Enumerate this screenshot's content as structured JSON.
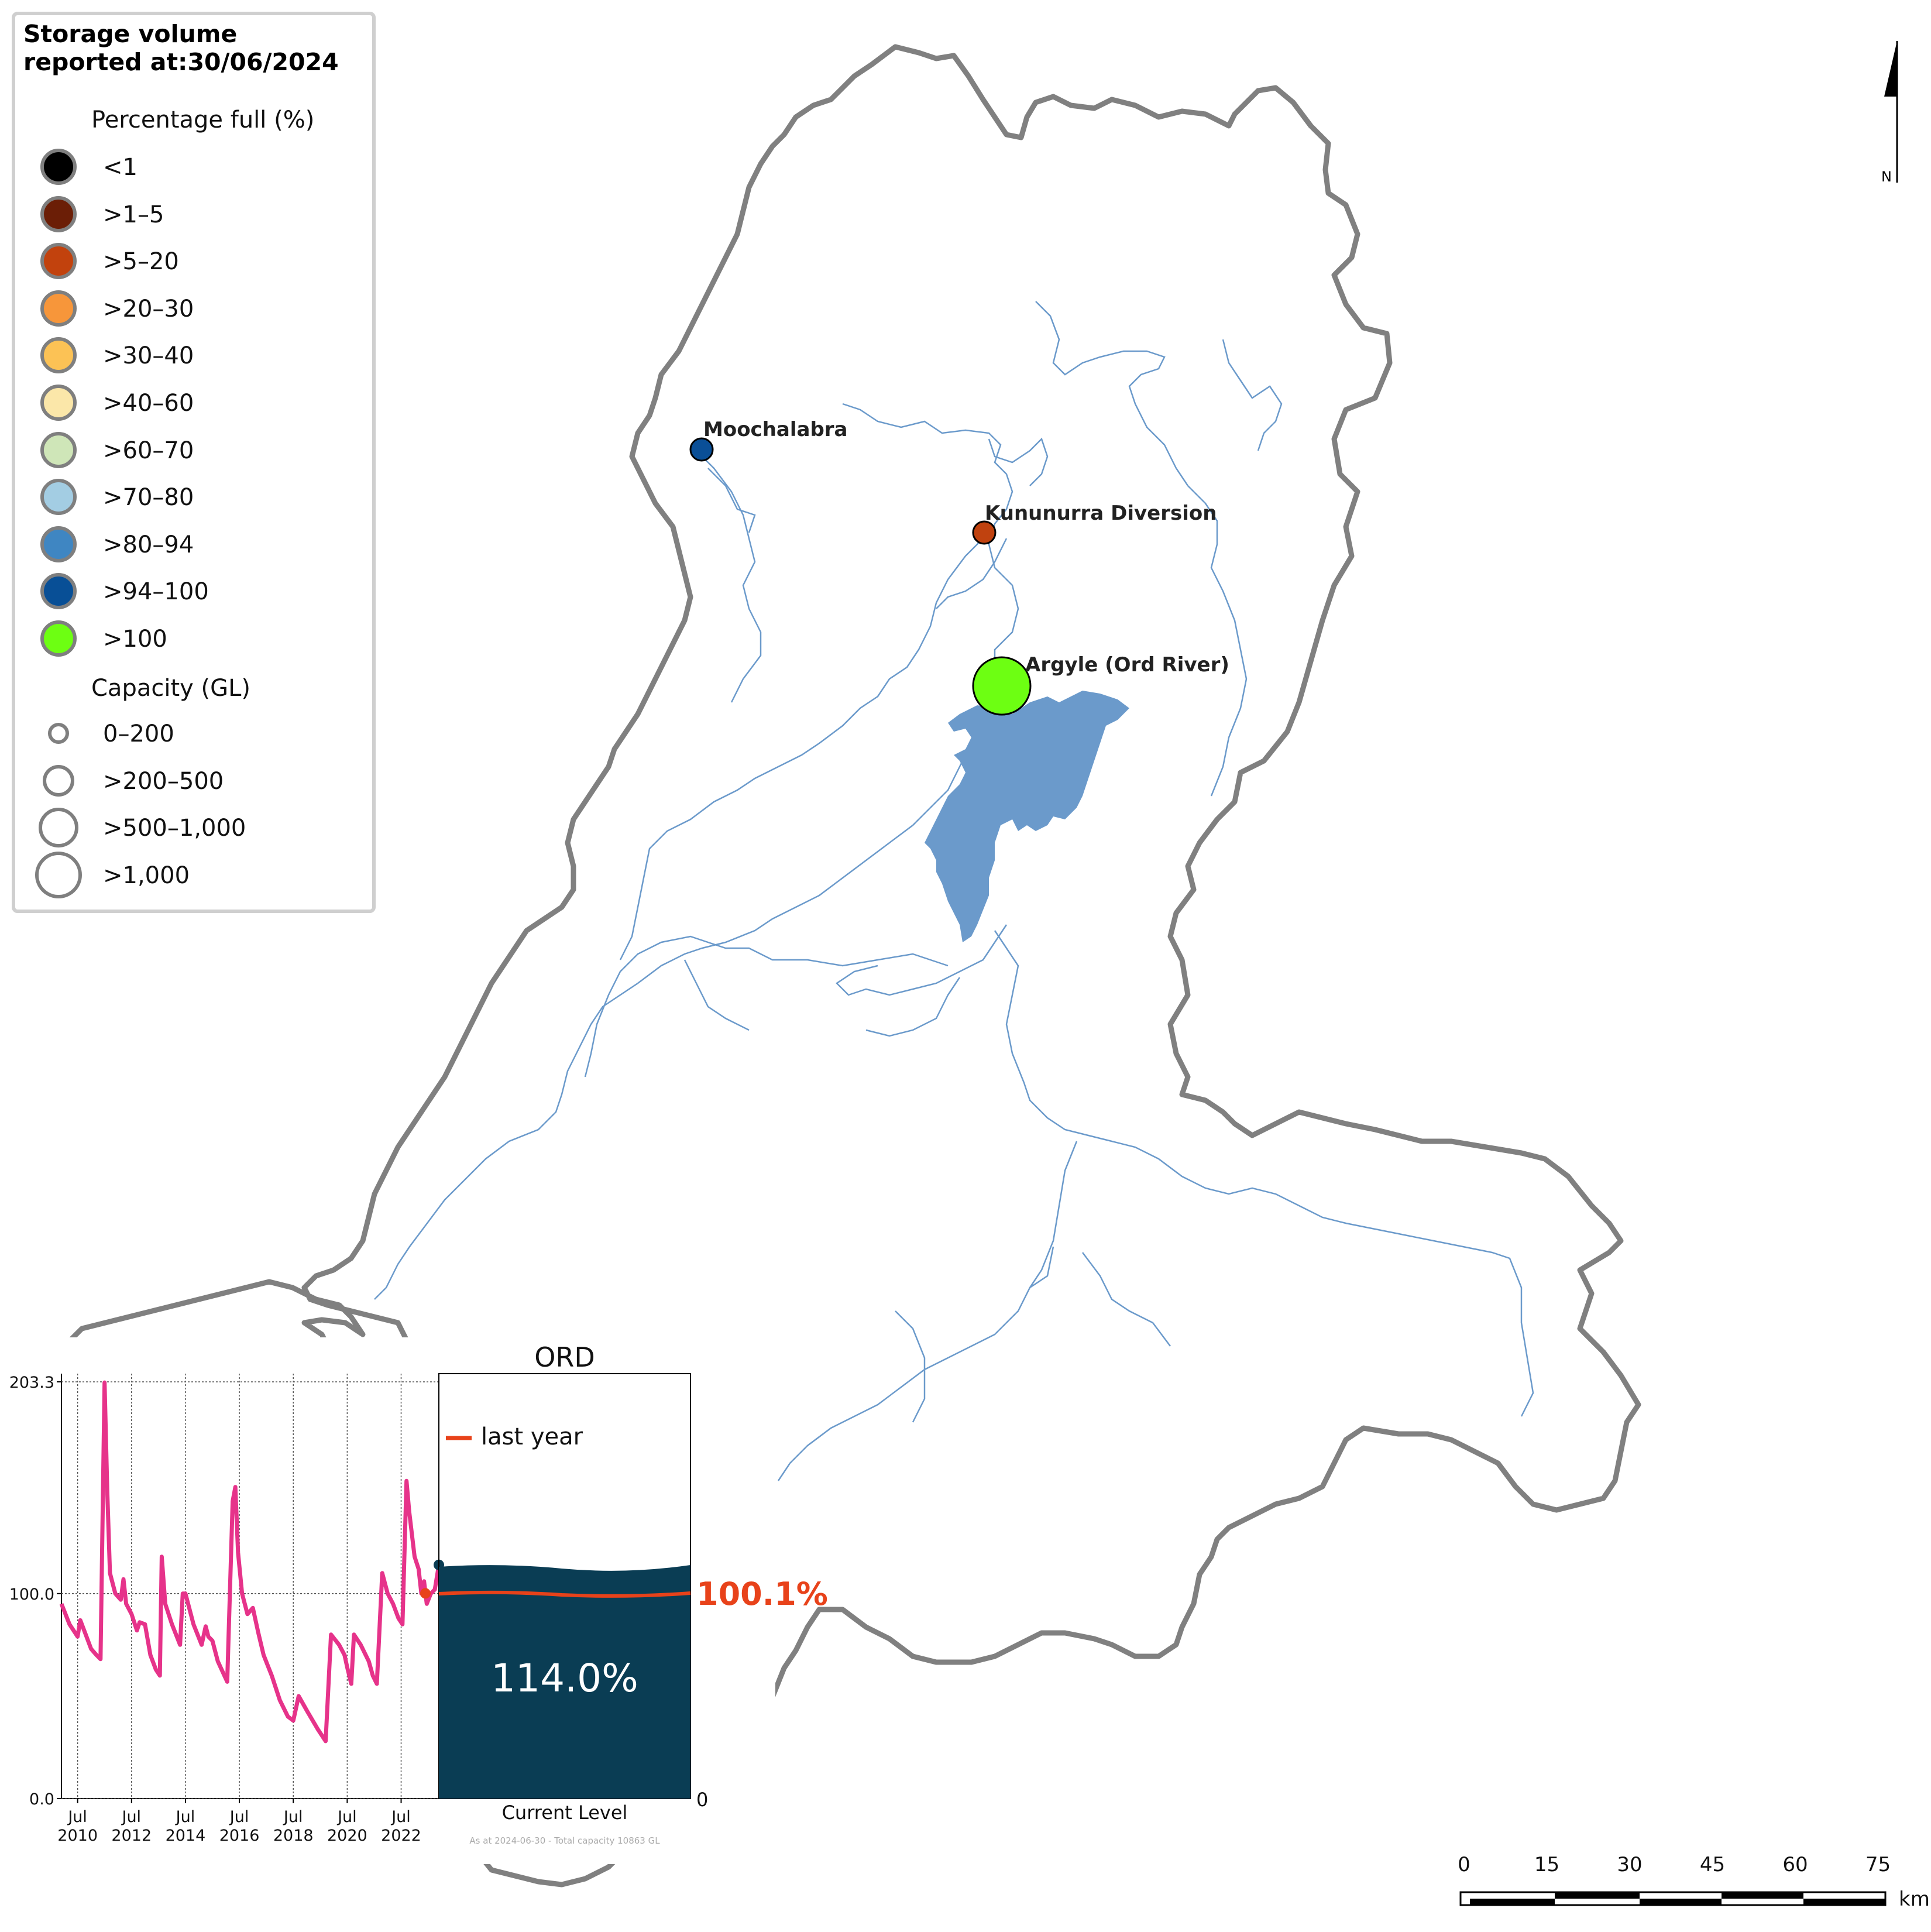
{
  "legend": {
    "title": "Storage volume\nreported at:30/06/2024",
    "percentage_heading": "Percentage full (%)",
    "percentage_items": [
      {
        "label": "<1",
        "color": "#000000"
      },
      {
        "label": ">1–5",
        "color": "#6b1e06"
      },
      {
        "label": ">5–20",
        "color": "#c2420d"
      },
      {
        "label": ">20–30",
        "color": "#f7963a"
      },
      {
        "label": ">30–40",
        "color": "#fcc255"
      },
      {
        "label": ">40–60",
        "color": "#fbe7a9"
      },
      {
        "label": ">60–70",
        "color": "#cfe6b8"
      },
      {
        "label": ">70–80",
        "color": "#a3cde3"
      },
      {
        "label": ">80–94",
        "color": "#3f86c2"
      },
      {
        "label": ">94–100",
        "color": "#084f96"
      },
      {
        "label": ">100",
        "color": "#6dff12"
      }
    ],
    "capacity_heading": "Capacity (GL)",
    "capacity_items": [
      {
        "label": "0–200"
      },
      {
        "label": ">200–500"
      },
      {
        "label": ">500–1,000"
      },
      {
        "label": ">1,000"
      }
    ]
  },
  "map": {
    "north_label": "N",
    "dams": [
      {
        "name": "Moochalabra",
        "color": "#0a4f97"
      },
      {
        "name": "Kununurra Diversion",
        "color": "#c0420f"
      },
      {
        "name": "Argyle (Ord River)",
        "color": "#6dff12"
      }
    ],
    "scale_bar": {
      "ticks": [
        "0",
        "15",
        "30",
        "45",
        "60",
        "75"
      ],
      "unit": "km"
    },
    "colors": {
      "boundary": "#808080",
      "river": "#6b9acb",
      "lake": "#6b9acb"
    }
  },
  "inset": {
    "title": "ORD",
    "legend_last_year": "last year",
    "last_year_value": "100.1%",
    "current_value": "114.0%",
    "current_level_label": "Current Level",
    "zero_label": "0",
    "footnote": "As at 2024-06-30 - Total capacity 10863 GL",
    "colors": {
      "line": "#e6338a",
      "tank": "#0a3d54",
      "last_year": "#e8421a"
    },
    "chart_data": {
      "type": "line",
      "ylim": [
        0.0,
        203.3
      ],
      "yticks": [
        "0.0",
        "100.0",
        "203.3"
      ],
      "xticks": [
        {
          "month": "Jul",
          "year": "2010"
        },
        {
          "month": "Jul",
          "year": "2012"
        },
        {
          "month": "Jul",
          "year": "2014"
        },
        {
          "month": "Jul",
          "year": "2016"
        },
        {
          "month": "Jul",
          "year": "2018"
        },
        {
          "month": "Jul",
          "year": "2020"
        },
        {
          "month": "Jul",
          "year": "2022"
        }
      ],
      "x_range": [
        2009.9,
        2023.9
      ],
      "series": [
        {
          "x": [
            2009.9,
            2010.2,
            2010.5,
            2010.6,
            2010.8,
            2011.0,
            2011.2,
            2011.35,
            2011.5,
            2011.6,
            2011.7,
            2011.9,
            2012.1,
            2012.2,
            2012.3,
            2012.5,
            2012.7,
            2012.8,
            2013.0,
            2013.2,
            2013.4,
            2013.55,
            2013.62,
            2013.75,
            2014.0,
            2014.3,
            2014.4,
            2014.5,
            2014.8,
            2015.1,
            2015.25,
            2015.35,
            2015.5,
            2015.7,
            2016.05,
            2016.25,
            2016.35,
            2016.45,
            2016.6,
            2016.8,
            2017.0,
            2017.2,
            2017.4,
            2017.7,
            2018.0,
            2018.3,
            2018.5,
            2018.7,
            2019.0,
            2019.4,
            2019.7,
            2019.9,
            2020.2,
            2020.4,
            2020.5,
            2020.65,
            2020.75,
            2021.0,
            2021.3,
            2021.45,
            2021.6,
            2021.8,
            2022.0,
            2022.2,
            2022.4,
            2022.55,
            2022.7,
            2022.8,
            2023.0,
            2023.15,
            2023.25,
            2023.35,
            2023.45,
            2023.6,
            2023.75,
            2023.9
          ],
          "y": [
            95,
            85,
            79,
            87,
            80,
            73,
            70,
            68,
            203,
            150,
            110,
            100,
            97,
            107,
            95,
            90,
            82,
            86,
            85,
            70,
            63,
            60,
            118,
            95,
            85,
            75,
            100,
            100,
            85,
            75,
            84,
            79,
            77,
            67,
            57,
            145,
            152,
            120,
            100,
            90,
            93,
            81,
            70,
            60,
            48,
            40,
            38,
            50,
            43,
            34,
            28,
            80,
            75,
            70,
            64,
            56,
            80,
            75,
            67,
            60,
            56,
            110,
            100,
            95,
            88,
            85,
            155,
            140,
            118,
            112,
            100,
            106,
            95,
            100,
            102,
            114
          ]
        }
      ],
      "last_year_marker": {
        "x": 2023.4,
        "y": 100.1
      }
    }
  }
}
